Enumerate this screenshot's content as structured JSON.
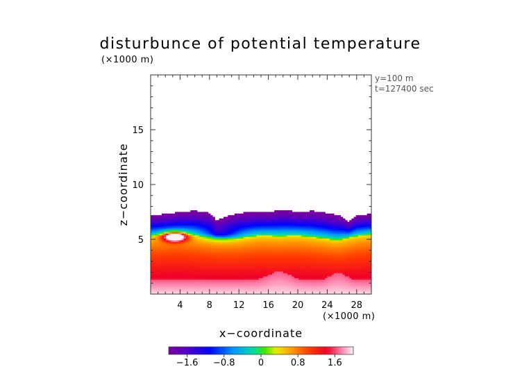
{
  "chart_data": {
    "type": "heatmap",
    "title": "disturbunce of potential temperature",
    "z_unit_label": "(×1000 m)",
    "x_unit_label": "(×1000 m)",
    "xlabel": "x−coordinate",
    "ylabel": "z−coordinate",
    "info_lines": [
      "y=100 m",
      "t=127400 sec"
    ],
    "xlim": [
      0,
      30
    ],
    "ylim": [
      0,
      20
    ],
    "x_ticks": [
      {
        "value": 4,
        "label": "4"
      },
      {
        "value": 8,
        "label": "8"
      },
      {
        "value": 12,
        "label": "12"
      },
      {
        "value": 16,
        "label": "16"
      },
      {
        "value": 20,
        "label": "20"
      },
      {
        "value": 24,
        "label": "24"
      },
      {
        "value": 28,
        "label": "28"
      }
    ],
    "y_ticks": [
      {
        "value": 5,
        "label": "5"
      },
      {
        "value": 10,
        "label": "10"
      },
      {
        "value": 15,
        "label": "15"
      }
    ],
    "colorbar": {
      "min": -2.0,
      "max": 2.0,
      "ticks": [
        {
          "value": -1.6,
          "label": "−1.6"
        },
        {
          "value": -0.8,
          "label": "−0.8"
        },
        {
          "value": 0,
          "label": "0"
        },
        {
          "value": 0.8,
          "label": "0.8"
        },
        {
          "value": 1.6,
          "label": "1.6"
        }
      ]
    },
    "field_description": "Disturbance field occupies z from surface to about 7.5; strong negative (purple/blue) near top of layer around z 6-7.5, near-zero band (green/yellow) around z 5-5.5, positive (orange/red) below, strongest positive (pink/white) near surface; local strong positive blob near x 3-4, z 5.2",
    "layer_top": [
      [
        0,
        7.2
      ],
      [
        2,
        7.3
      ],
      [
        4,
        7.5
      ],
      [
        6,
        7.6
      ],
      [
        8,
        7.4
      ],
      [
        9,
        6.7
      ],
      [
        10,
        7.0
      ],
      [
        12,
        7.4
      ],
      [
        14,
        7.5
      ],
      [
        16,
        7.5
      ],
      [
        18,
        7.7
      ],
      [
        20,
        7.5
      ],
      [
        22,
        7.6
      ],
      [
        24,
        7.4
      ],
      [
        26,
        7.1
      ],
      [
        27,
        6.6
      ],
      [
        28,
        7.2
      ],
      [
        30,
        7.3
      ]
    ],
    "samples": [
      {
        "x": 3.5,
        "z": 5.2,
        "value": 2.0
      },
      {
        "x": 4.5,
        "z": 6.5,
        "value": -1.8
      },
      {
        "x": 16,
        "z": 6.8,
        "value": -1.6
      },
      {
        "x": 16,
        "z": 5.3,
        "value": 0.3
      },
      {
        "x": 16,
        "z": 3.5,
        "value": 1.2
      },
      {
        "x": 16,
        "z": 1.0,
        "value": 1.9
      }
    ]
  }
}
